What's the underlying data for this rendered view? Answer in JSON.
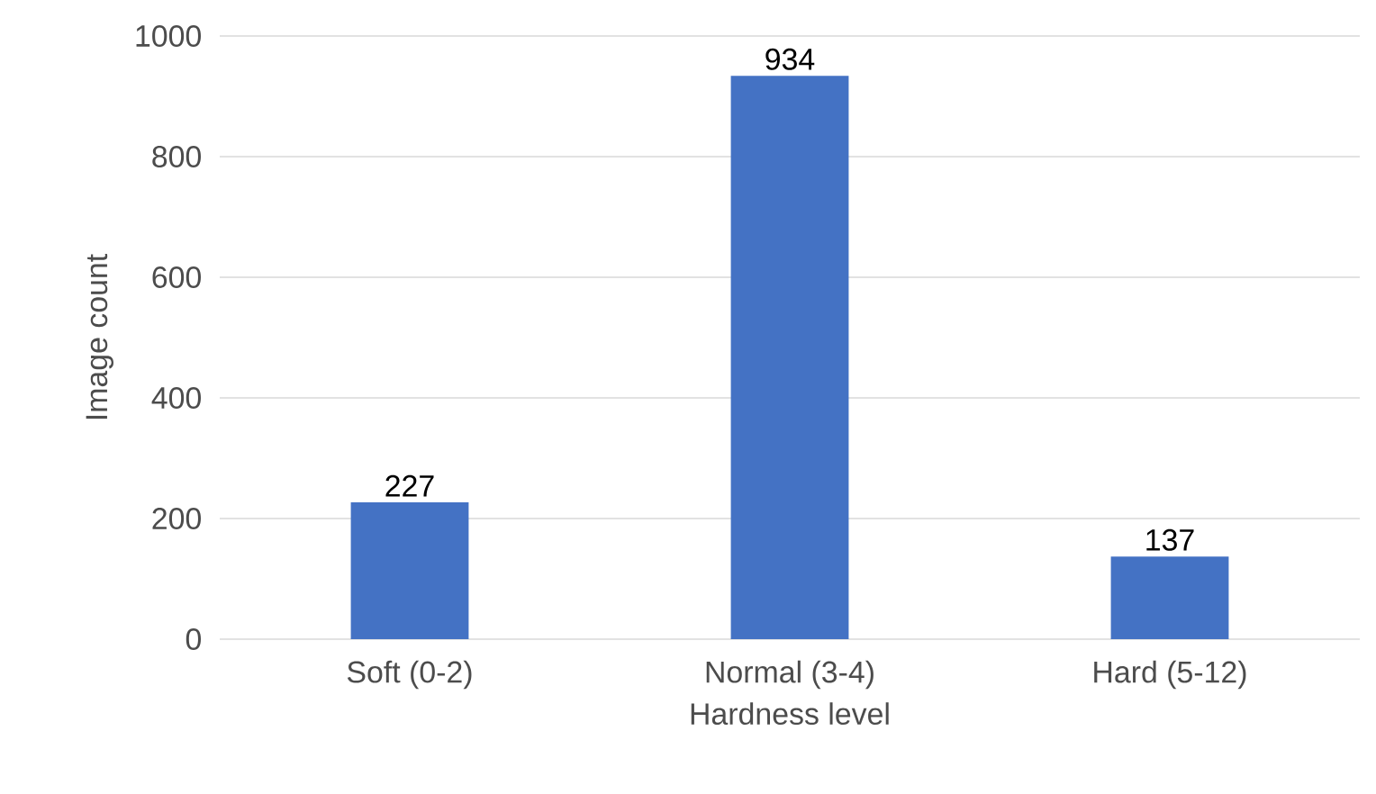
{
  "chart_data": {
    "type": "bar",
    "xlabel": "Hardness level",
    "ylabel": "Image count",
    "categories": [
      "Soft (0-2)",
      "Normal (3-4)",
      "Hard (5-12)"
    ],
    "values": [
      227,
      934,
      137
    ],
    "color": "#4472c4",
    "ylim": [
      0,
      1000
    ],
    "yticks": [
      0,
      200,
      400,
      600,
      800,
      1000
    ],
    "grid": "y",
    "data_labels": true
  }
}
